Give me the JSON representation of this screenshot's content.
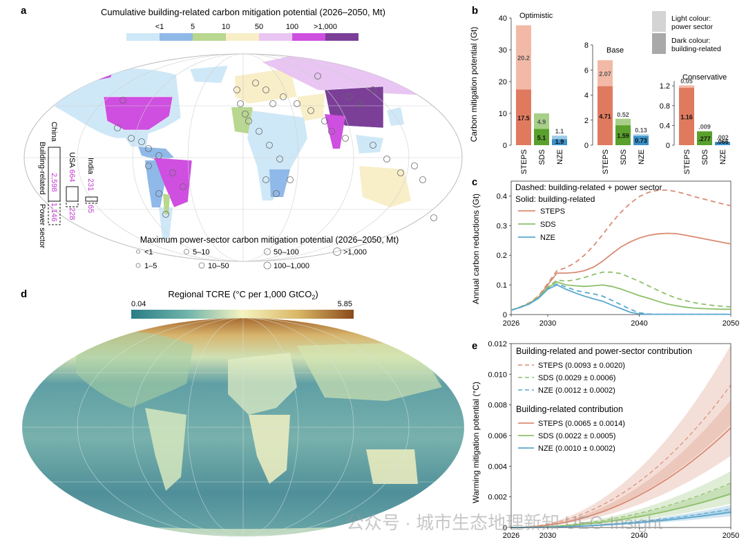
{
  "panels": {
    "a": {
      "letter": "a",
      "title": "Cumulative building-related carbon mitigation potential (2026–2050, Mt)",
      "scale": {
        "labels": [
          "<1",
          "5",
          "10",
          "50",
          "100",
          ">1,000"
        ],
        "colors": [
          "#cfe8f7",
          "#8fb9e8",
          "#b8d78f",
          "#f8eec8",
          "#e8c5f2",
          "#cf4fe0",
          "#7b3f98"
        ]
      },
      "power_legend": {
        "title": "Maximum power-sector carbon mitigation potential (2026–2050, Mt)",
        "items": [
          "<1",
          "1–5",
          "5–10",
          "10–50",
          "50–100",
          "100–1,000",
          ">1,000"
        ]
      },
      "bars": {
        "side_label_1": "Building-related",
        "side_label_2": "Power sector",
        "countries": [
          {
            "name": "China",
            "building": "2,598",
            "power": "1,146"
          },
          {
            "name": "USA",
            "building": "664",
            "power": "228"
          },
          {
            "name": "India",
            "building": "231",
            "power": "65"
          }
        ]
      }
    },
    "d": {
      "letter": "d",
      "title": "Regional TCRE (°C per 1,000 GtCO",
      "title_sub": "2",
      "title_end": ")",
      "min_label": "0.04",
      "max_label": "5.85"
    },
    "b": {
      "letter": "b"
    },
    "c": {
      "letter": "c"
    },
    "e": {
      "letter": "e"
    }
  },
  "watermark": "公众号 · 城市生态地理新知 UEG-Insight",
  "colors": {
    "steps_dark": "#e07a5f",
    "steps_light": "#f2b9a7",
    "sds_dark": "#5aa02c",
    "sds_light": "#a8cf88",
    "nze_dark": "#3a8fc7",
    "nze_light": "#9bcbe6",
    "steps_line": "#d98b73",
    "sds_line": "#8cc06a",
    "nze_line": "#5aa7cf"
  },
  "chart_data": [
    {
      "panel": "b",
      "type": "bar",
      "ylabel": "Carbon mitigation potential (Gt)",
      "legend": {
        "light": "Light colour: power sector",
        "dark": "Dark colour: building-related"
      },
      "groups": [
        {
          "name": "Optimistic",
          "ylim": [
            0,
            40
          ],
          "ticks": [
            0,
            10,
            20,
            30,
            40
          ],
          "categories": [
            "STEPS",
            "SDS",
            "NZE"
          ],
          "building": [
            17.5,
            5.1,
            1.9
          ],
          "power": [
            20.2,
            4.9,
            1.1
          ],
          "building_labels": [
            "17.5",
            "5.1",
            "1.9"
          ],
          "power_labels": [
            "20.2",
            "4.9",
            "1.1"
          ]
        },
        {
          "name": "Base",
          "ylim": [
            0,
            8
          ],
          "ticks": [
            0,
            2,
            4,
            6,
            8
          ],
          "categories": [
            "STEPS",
            "SDS",
            "NZE"
          ],
          "building": [
            4.71,
            1.59,
            0.73
          ],
          "power": [
            2.07,
            0.52,
            0.13
          ],
          "building_labels": [
            "4.71",
            "1.59",
            "0.73"
          ],
          "power_labels": [
            "2.07",
            "0.52",
            "0.13"
          ]
        },
        {
          "name": "Conservative",
          "ylim": [
            0,
            1.3
          ],
          "ticks": [
            0,
            0.4,
            0.8,
            1.2
          ],
          "categories": [
            "STEPS",
            "SDS",
            "NZE"
          ],
          "building": [
            1.16,
            0.277,
            0.066
          ],
          "power": [
            0.05,
            0.009,
            0.002
          ],
          "building_labels": [
            "1.16",
            ".277",
            ".066"
          ],
          "power_labels": [
            "0.05",
            ".009",
            ".002"
          ]
        }
      ]
    },
    {
      "panel": "c",
      "type": "line",
      "ylabel": "Annual carbon reductions (Gt)",
      "xlim": [
        2026,
        2050
      ],
      "ylim": [
        0,
        0.45
      ],
      "xticks": [
        2026,
        2030,
        2040,
        2050
      ],
      "yticks": [
        0,
        0.1,
        0.2,
        0.3,
        0.4
      ],
      "legend_title_1": "Dashed: building-related + power sector",
      "legend_title_2": "Solid: building-related",
      "x": [
        2026,
        2027,
        2028,
        2029,
        2030,
        2031,
        2032,
        2033,
        2034,
        2035,
        2036,
        2037,
        2038,
        2039,
        2040,
        2041,
        2042,
        2043,
        2044,
        2045,
        2046,
        2047,
        2048,
        2049,
        2050
      ],
      "series": [
        {
          "name": "STEPS",
          "style": "solid",
          "values": [
            0.015,
            0.025,
            0.038,
            0.06,
            0.1,
            0.14,
            0.14,
            0.142,
            0.148,
            0.16,
            0.18,
            0.205,
            0.228,
            0.245,
            0.258,
            0.267,
            0.272,
            0.274,
            0.273,
            0.268,
            0.262,
            0.256,
            0.25,
            0.244,
            0.238
          ]
        },
        {
          "name": "STEPS",
          "style": "dashed",
          "values": [
            0.015,
            0.026,
            0.04,
            0.063,
            0.105,
            0.148,
            0.158,
            0.175,
            0.2,
            0.232,
            0.27,
            0.31,
            0.345,
            0.375,
            0.398,
            0.412,
            0.419,
            0.42,
            0.415,
            0.407,
            0.398,
            0.39,
            0.382,
            0.374,
            0.367
          ]
        },
        {
          "name": "SDS",
          "style": "solid",
          "values": [
            0.015,
            0.025,
            0.037,
            0.058,
            0.09,
            0.11,
            0.1,
            0.097,
            0.095,
            0.097,
            0.1,
            0.095,
            0.086,
            0.075,
            0.064,
            0.055,
            0.045,
            0.036,
            0.03,
            0.025,
            0.022,
            0.02,
            0.019,
            0.018,
            0.018
          ]
        },
        {
          "name": "SDS",
          "style": "dashed",
          "values": [
            0.015,
            0.025,
            0.038,
            0.06,
            0.093,
            0.116,
            0.113,
            0.117,
            0.125,
            0.135,
            0.143,
            0.143,
            0.138,
            0.125,
            0.112,
            0.097,
            0.082,
            0.068,
            0.056,
            0.047,
            0.04,
            0.035,
            0.031,
            0.028,
            0.026
          ]
        },
        {
          "name": "NZE",
          "style": "solid",
          "values": [
            0.015,
            0.024,
            0.036,
            0.055,
            0.085,
            0.1,
            0.085,
            0.073,
            0.062,
            0.053,
            0.045,
            0.032,
            0.02,
            0.008,
            0.002,
            0.001,
            0.001,
            0.001,
            0.001,
            0.001,
            0.001,
            0.001,
            0.001,
            0.001,
            0.001
          ]
        },
        {
          "name": "NZE",
          "style": "dashed",
          "values": [
            0.015,
            0.024,
            0.036,
            0.056,
            0.087,
            0.103,
            0.093,
            0.082,
            0.075,
            0.07,
            0.062,
            0.048,
            0.033,
            0.018,
            0.006,
            0.002,
            0.001,
            0.001,
            0.001,
            0.001,
            0.001,
            0.001,
            0.001,
            0.001,
            0.001
          ]
        }
      ],
      "legend": [
        "STEPS",
        "SDS",
        "NZE"
      ]
    },
    {
      "panel": "e",
      "type": "line",
      "ylabel": "Warming mitigation potential (°C)",
      "xlim": [
        2026,
        2050
      ],
      "ylim": [
        0,
        0.012
      ],
      "xticks": [
        2026,
        2030,
        2040,
        2050
      ],
      "yticks": [
        0,
        0.002,
        0.004,
        0.006,
        0.008,
        0.01,
        0.012
      ],
      "ytick_labels": [
        "0",
        "0.002",
        "0.004",
        "0.006",
        "0.008",
        "0.010",
        "0.012"
      ],
      "legend_group_1": "Building-related and power-sector contribution",
      "legend_group_2": "Building-related contribution",
      "legend_dashed": [
        "STEPS (0.0093 ± 0.0020)",
        "SDS (0.0029 ± 0.0006)",
        "NZE (0.0012 ± 0.0002)"
      ],
      "legend_solid": [
        "STEPS (0.0065 ± 0.0014)",
        "SDS (0.0022 ± 0.0005)",
        "NZE (0.0010 ± 0.0002)"
      ],
      "end_values": {
        "steps_dashed": 0.0093,
        "steps_dashed_sd": 0.002,
        "sds_dashed": 0.0029,
        "sds_dashed_sd": 0.0006,
        "nze_dashed": 0.0012,
        "nze_dashed_sd": 0.0002,
        "steps_solid": 0.0065,
        "steps_solid_sd": 0.0014,
        "sds_solid": 0.0022,
        "sds_solid_sd": 0.0005,
        "nze_solid": 0.001,
        "nze_solid_sd": 0.0002
      }
    }
  ]
}
